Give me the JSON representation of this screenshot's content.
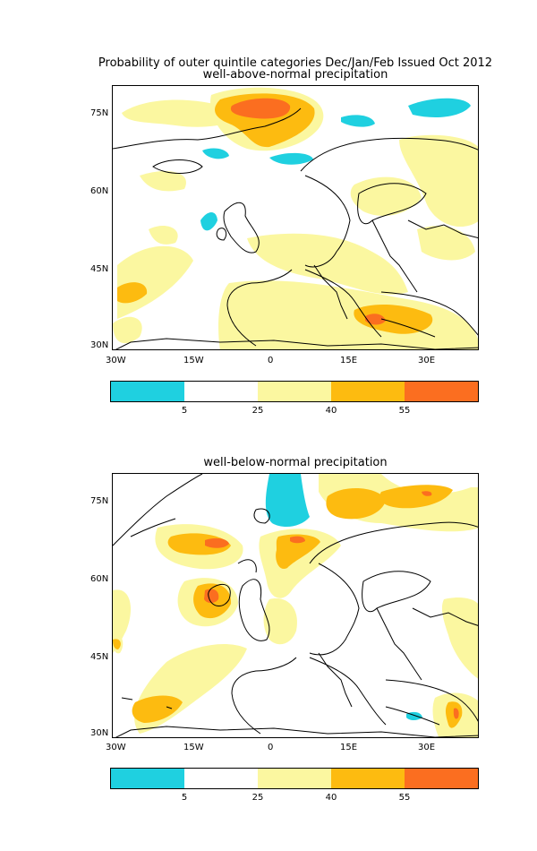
{
  "title": "Probability of outer quintile categories Dec/Jan/Feb Issued Oct 2012",
  "panels": [
    {
      "subtitle": "well-above-normal precipitation"
    },
    {
      "subtitle": "well-below-normal precipitation"
    }
  ],
  "lat_ticks": [
    "75N",
    "60N",
    "45N",
    "30N"
  ],
  "lon_ticks": [
    "30W",
    "15W",
    "0",
    "15E",
    "30E"
  ],
  "colorbar": {
    "labels": [
      "5",
      "25",
      "40",
      "55"
    ],
    "colors": [
      "#1fd0e0",
      "#ffffff",
      "#fbf7a0",
      "#fdbb10",
      "#fb6e20"
    ]
  },
  "colors": {
    "coast": "#000000"
  }
}
